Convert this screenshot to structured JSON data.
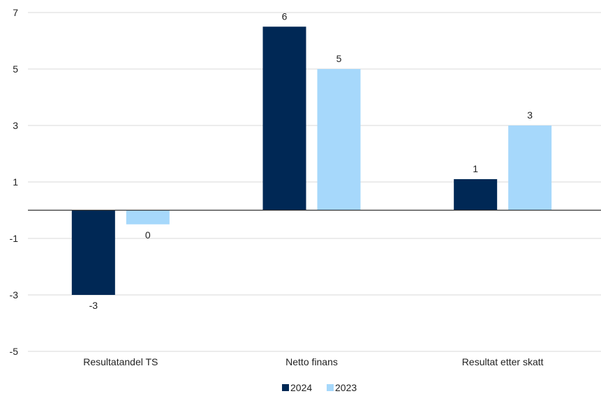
{
  "chart_data": {
    "type": "bar",
    "categories": [
      "Resultatandel TS",
      "Netto finans",
      "Resultat etter skatt"
    ],
    "series": [
      {
        "name": "2024",
        "color": "#002855",
        "values": [
          -3,
          6.5,
          1.1
        ],
        "labels": [
          "-3",
          "6",
          "1"
        ]
      },
      {
        "name": "2023",
        "color": "#a6d8fb",
        "values": [
          -0.5,
          5,
          3
        ],
        "labels": [
          "0",
          "5",
          "3"
        ]
      }
    ],
    "yticks": [
      7,
      5,
      3,
      1,
      -1,
      -3,
      -5
    ],
    "ylim": [
      -5,
      7
    ],
    "grid": true,
    "legend_position": "bottom-center",
    "title": "",
    "xlabel": "",
    "ylabel": ""
  }
}
